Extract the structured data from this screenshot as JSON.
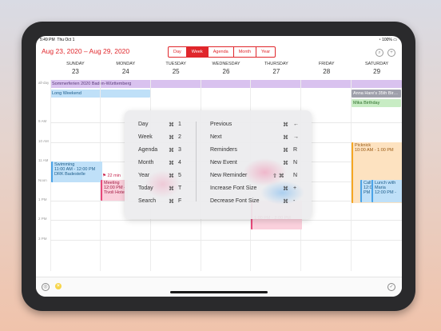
{
  "status": {
    "time": "5:49 PM",
    "date": "Thu Oct 1",
    "battery": "100%"
  },
  "header": {
    "range": "Aug 23, 2020 – Aug 29, 2020",
    "views": [
      "Day",
      "Week",
      "Agenda",
      "Month",
      "Year"
    ],
    "selected_view": "Week"
  },
  "days": [
    {
      "name": "SUNDAY",
      "num": "23"
    },
    {
      "name": "MONDAY",
      "num": "24"
    },
    {
      "name": "TUESDAY",
      "num": "25"
    },
    {
      "name": "WEDNESDAY",
      "num": "26"
    },
    {
      "name": "THURSDAY",
      "num": "27"
    },
    {
      "name": "FRIDAY",
      "num": "28"
    },
    {
      "name": "SATURDAY",
      "num": "29"
    }
  ],
  "allday_label": "all-day",
  "allday_events": [
    {
      "title": "Sommerferien 2020 Baden-Württemberg"
    },
    {
      "title": "Long Weekend"
    },
    {
      "title": "Anna Hare's 35th Bir…"
    },
    {
      "title": "Mika Birthday"
    }
  ],
  "hours": [
    "9 AM",
    "10 AM",
    "11 AM",
    "Noon",
    "1 PM",
    "2 PM",
    "3 PM"
  ],
  "events": {
    "swimming": {
      "title": "Swimming",
      "time": "11:00 AM - 12:00 PM",
      "loc": "DRK Badestelle"
    },
    "travel": {
      "text": "22 min"
    },
    "meeting": {
      "title": "Meeting",
      "time": "12:00 PM -",
      "loc": "Tivoli Hote"
    },
    "thursday": {
      "time": "1:00 PM - 2:00 PM"
    },
    "picknick": {
      "title": "Picknick",
      "time": "10:00 AM - 1:00 PM"
    },
    "call": {
      "title": "Call",
      "time": "12:0",
      "extra": "PM"
    },
    "lunch": {
      "title": "Lunch with Maria",
      "time": "12:00 PM -"
    }
  },
  "shortcuts": {
    "left": [
      {
        "label": "Day",
        "mod": "⌘",
        "key": "1"
      },
      {
        "label": "Week",
        "mod": "⌘",
        "key": "2"
      },
      {
        "label": "Agenda",
        "mod": "⌘",
        "key": "3"
      },
      {
        "label": "Month",
        "mod": "⌘",
        "key": "4"
      },
      {
        "label": "Year",
        "mod": "⌘",
        "key": "5"
      },
      {
        "label": "Today",
        "mod": "⌘",
        "key": "T"
      },
      {
        "label": "Search",
        "mod": "⌘",
        "key": "F"
      }
    ],
    "right": [
      {
        "label": "Previous",
        "mod": "⌘",
        "key": "←"
      },
      {
        "label": "Next",
        "mod": "⌘",
        "key": "→"
      },
      {
        "label": "Reminders",
        "mod": "⌘",
        "key": "R"
      },
      {
        "label": "New Event",
        "mod": "⌘",
        "key": "N"
      },
      {
        "label": "New Reminder",
        "mod": "⇧ ⌘",
        "key": "N"
      },
      {
        "label": "Increase Font Size",
        "mod": "⌘",
        "key": "+"
      },
      {
        "label": "Decrease Font Size",
        "mod": "⌘",
        "key": "-"
      }
    ]
  },
  "colors": {
    "accent": "#e0262b",
    "purple": "#d9c2ef",
    "blue": "#bfe0f8",
    "green": "#c8ecc4",
    "pink": "#fad0dc",
    "orange": "#fde2c0"
  }
}
